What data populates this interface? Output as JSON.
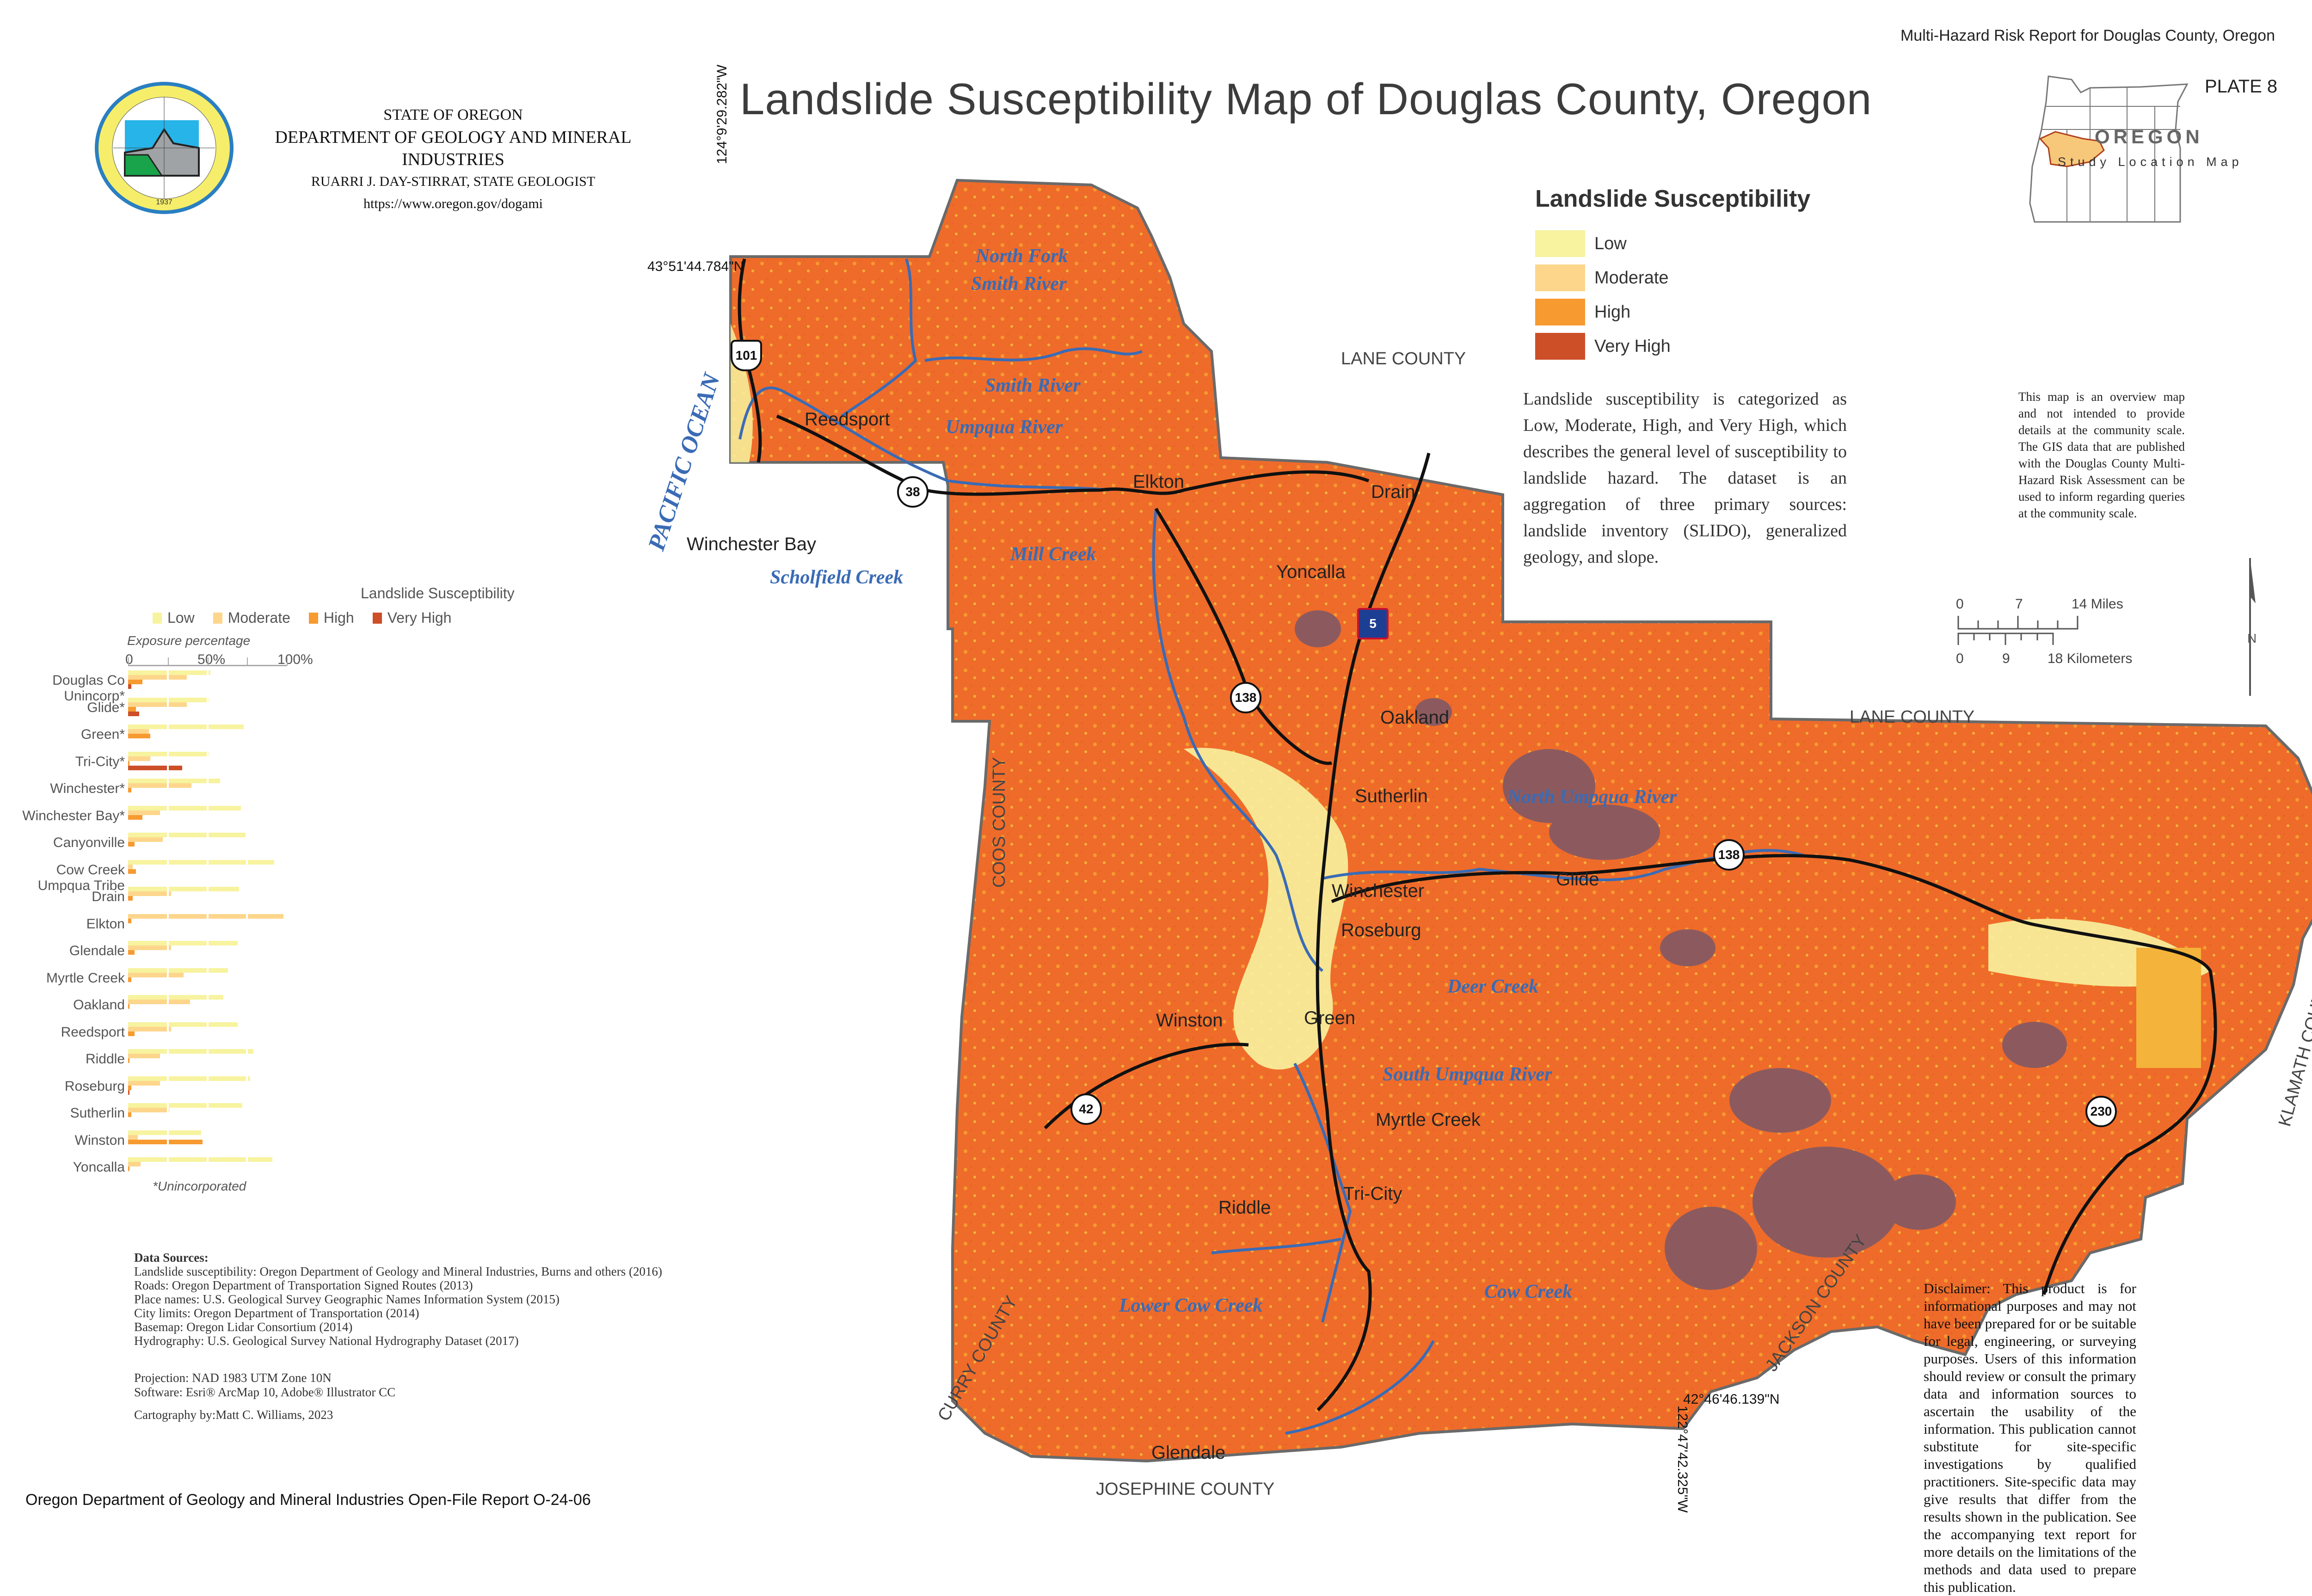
{
  "header": {
    "report": "Multi-Hazard Risk Report for Douglas County, Oregon",
    "plate": "PLATE 8",
    "title": "Landslide Susceptibility Map of Douglas County, Oregon"
  },
  "agency": {
    "line1": "STATE OF OREGON",
    "line2": "DEPARTMENT OF GEOLOGY AND MINERAL INDUSTRIES",
    "line3": "RUARRI J. DAY-STIRRAT, STATE GEOLOGIST",
    "line4": "https://www.oregon.gov/dogami",
    "seal_text": "OREGON DEPARTMENT OF GEOLOGY AND MINERAL INDUSTRIES",
    "seal_year": "1937"
  },
  "colors": {
    "low": "#f7f39f",
    "moderate": "#fdd68c",
    "high": "#f79a30",
    "very_high": "#cc4f28",
    "map_base": "#ef6b2a",
    "landslide_deposit": "#8c5a5e",
    "river": "#3a6bb5",
    "road": "#111111"
  },
  "legend": {
    "title": "Landslide Susceptibility",
    "items": [
      {
        "label": "Low",
        "color": "#f7f39f"
      },
      {
        "label": "Moderate",
        "color": "#fdd68c"
      },
      {
        "label": "High",
        "color": "#f79a30"
      },
      {
        "label": "Very High",
        "color": "#cc4f28"
      }
    ],
    "description": "Landslide susceptibility is categorized as Low, Moderate, High, and Very High, which describes the general level of susceptibility to landslide hazard. The dataset is an aggregation of three primary sources: landslide inventory (SLIDO), generalized geology, and slope."
  },
  "location_map": {
    "state_label": "OREGON",
    "caption": "Study Location Map",
    "note": "This map is an overview map and not intended to provide details at the community scale. The GIS data that are published with the Douglas County Multi-Hazard Risk Assessment can be used to inform regarding queries at the community scale."
  },
  "scale_bar": {
    "miles": [
      "0",
      "7",
      "14 Miles"
    ],
    "km": [
      "0",
      "9",
      "18 Kilometers"
    ],
    "north": "N"
  },
  "map": {
    "coords": {
      "nw_lat": "43°51'44.784\"N",
      "nw_lon": "124°9'29.282\"W",
      "se_lat": "42°46'46.139\"N",
      "se_lon": "122°47'42.325\"W"
    },
    "ocean": "PACIFIC OCEAN",
    "counties": {
      "lane_n": "LANE COUNTY",
      "lane_e": "LANE COUNTY",
      "coos": "COOS COUNTY",
      "curry": "CURRY COUNTY",
      "josephine": "JOSEPHINE COUNTY",
      "jackson": "JACKSON COUNTY",
      "klamath": "KLAMATH COUNTY"
    },
    "places": {
      "reedsport": "Reedsport",
      "winchester_bay": "Winchester Bay",
      "elkton": "Elkton",
      "drain": "Drain",
      "yoncalla": "Yoncalla",
      "oakland": "Oakland",
      "sutherlin": "Sutherlin",
      "glide": "Glide",
      "winchester": "Winchester",
      "roseburg": "Roseburg",
      "winston": "Winston",
      "green": "Green",
      "myrtle_creek": "Myrtle Creek",
      "tri_city": "Tri-City",
      "riddle": "Riddle",
      "glendale": "Glendale"
    },
    "rivers": {
      "nf_smith": "North Fork",
      "nf_smith2": "Smith River",
      "smith": "Smith River",
      "umpqua": "Umpqua River",
      "mill": "Mill Creek",
      "scholfield": "Scholfield Creek",
      "north_umpqua": "North Umpqua River",
      "deer": "Deer Creek",
      "south_umpqua": "South Umpqua River",
      "lower_cow": "Lower Cow Creek",
      "cow": "Cow Creek"
    },
    "routes": [
      "101",
      "38",
      "138",
      "138",
      "5",
      "42",
      "230"
    ]
  },
  "chart_data": {
    "type": "bar",
    "orientation": "horizontal",
    "title": "Landslide Susceptibility",
    "xlabel": "Exposure percentage",
    "ylabel": "",
    "xlim": [
      0,
      100
    ],
    "xticks": [
      "0",
      "50%",
      "100%"
    ],
    "legend": [
      "Low",
      "Moderate",
      "High",
      "Very High"
    ],
    "legend_position": "top",
    "grid": true,
    "categories": [
      "Douglas Co Unincorp*",
      "Glide*",
      "Green*",
      "Tri-City*",
      "Winchester*",
      "Winchester Bay*",
      "Canyonville",
      "Cow Creek Umpqua Tribe",
      "Drain",
      "Elkton",
      "Glendale",
      "Myrtle Creek",
      "Oakland",
      "Reedsport",
      "Riddle",
      "Roseburg",
      "Sutherlin",
      "Winston",
      "Yoncalla"
    ],
    "series": [
      {
        "name": "Low",
        "color": "#f7f39f",
        "values": [
          52,
          51,
          73,
          51,
          58,
          71,
          74,
          92,
          70,
          0,
          69,
          63,
          60,
          69,
          79,
          77,
          72,
          46,
          91
        ]
      },
      {
        "name": "Moderate",
        "color": "#fdd68c",
        "values": [
          37,
          37,
          13,
          14,
          40,
          20,
          22,
          3,
          27,
          98,
          27,
          35,
          39,
          27,
          20,
          20,
          26,
          6,
          8
        ]
      },
      {
        "name": "High",
        "color": "#f79a30",
        "values": [
          9,
          5,
          14,
          1,
          2,
          9,
          4,
          5,
          3,
          2,
          4,
          2,
          1,
          4,
          1,
          2,
          2,
          47,
          1
        ]
      },
      {
        "name": "Very High",
        "color": "#cc4f28",
        "values": [
          2,
          7,
          0,
          34,
          0,
          0,
          0,
          0,
          0,
          0,
          0,
          0,
          0,
          0,
          0,
          1,
          0,
          0,
          0
        ]
      }
    ],
    "footnote": "*Unincorporated"
  },
  "sources": {
    "heading": "Data Sources:",
    "lines": [
      "Landslide susceptibility: Oregon Department of Geology and Mineral Industries, Burns and others (2016)",
      "Roads: Oregon Department of Transportation Signed Routes (2013)",
      "Place names: U.S. Geological Survey Geographic Names Information System (2015)",
      "City limits: Oregon Department of Transportation (2014)",
      "Basemap: Oregon Lidar Consortium (2014)",
      "Hydrography: U.S. Geological Survey National Hydrography Dataset (2017)"
    ],
    "projection": "Projection: NAD 1983 UTM Zone 10N",
    "software": "Software: Esri® ArcMap 10, Adobe® Illustrator CC",
    "cartography": "Cartography by:Matt C. Williams, 2023"
  },
  "disclaimer": "Disclaimer: This product is for informational purposes and may not have been prepared for or be suitable for legal, engineering, or surveying purposes. Users of this information should review or consult the primary data and information sources to ascertain the usability of the information. This publication cannot substitute for site-specific investigations by qualified practitioners. Site-specific data may give results that differ from the results shown in the publication. See the accompanying text report for more details on the limitations of the methods and data used to prepare this publication.",
  "footer": "Oregon Department of Geology and Mineral Industries Open-File Report O-24-06"
}
